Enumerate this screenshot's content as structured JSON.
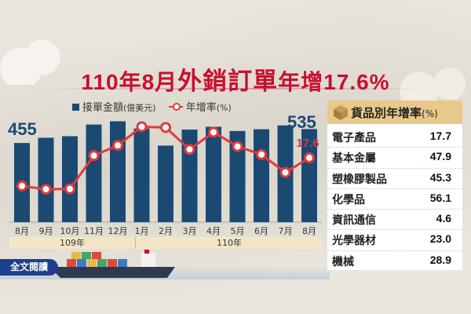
{
  "headline": {
    "part1": "110年8月",
    "part2": "外銷訂單",
    "part3": "年增17.6%"
  },
  "legend": {
    "bar_label": "接單金額",
    "bar_unit": "(億美元)",
    "line_label": "年增率",
    "line_unit": "(%)"
  },
  "labels": {
    "first_value": "455",
    "last_value": "535",
    "last_growth": "17.6"
  },
  "year_groups": {
    "y109": "109年",
    "y110": "110年"
  },
  "read_more": "全文閱讀",
  "panel": {
    "title": "貨品別年增率",
    "title_unit": "(%)",
    "rows": [
      {
        "name": "電子產品",
        "value": "17.7"
      },
      {
        "name": "基本金屬",
        "value": "47.9"
      },
      {
        "name": "塑橡膠製品",
        "value": "45.3"
      },
      {
        "name": "化學品",
        "value": "56.1"
      },
      {
        "name": "資訊通信",
        "value": "4.6"
      },
      {
        "name": "光學器材",
        "value": "23.0"
      },
      {
        "name": "機械",
        "value": "28.9"
      }
    ]
  },
  "colors": {
    "bar": "#1a4a72",
    "line": "#e03b3b",
    "headline": "#c8102e",
    "panel_header": "#e9c98a"
  },
  "chart_data": {
    "type": "bar",
    "categories": [
      "8月",
      "9月",
      "10月",
      "11月",
      "12月",
      "1月",
      "2月",
      "3月",
      "4月",
      "5月",
      "6月",
      "7月",
      "8月"
    ],
    "series": [
      {
        "name": "接單金額(億美元)",
        "type": "bar",
        "values": [
          455,
          485,
          494,
          561,
          580,
          538,
          440,
          532,
          548,
          524,
          534,
          556,
          535
        ]
      },
      {
        "name": "年增率(%)",
        "type": "line",
        "values": [
          9.9,
          9.0,
          9.1,
          18.2,
          21.0,
          26.1,
          25.9,
          19.9,
          24.6,
          20.7,
          18.5,
          13.6,
          17.6
        ]
      }
    ],
    "ylim_bar": [
      0,
      600
    ],
    "ylim_line": [
      0,
      35
    ]
  }
}
